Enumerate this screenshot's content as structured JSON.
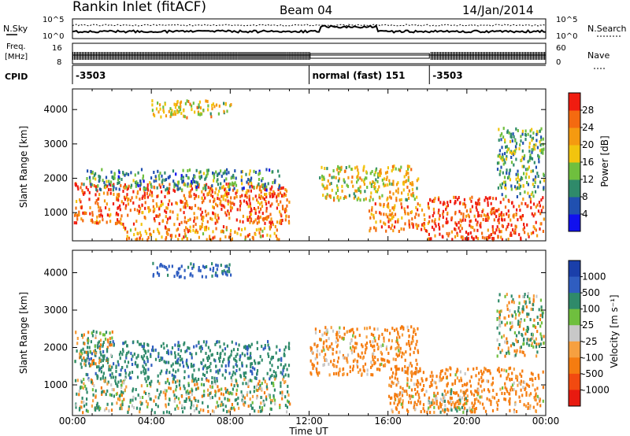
{
  "header": {
    "station": "Rankin Inlet (fitACF)",
    "beam": "Beam 04",
    "date": "14/Jan/2014"
  },
  "noise_panel": {
    "left_label": "N.Sky",
    "right_label": "N.Search",
    "left_ticks": [
      "10^5",
      "10^0"
    ],
    "right_ticks": [
      "10^5",
      "10^0"
    ]
  },
  "freq_panel": {
    "left_label_line1": "Freq.",
    "left_label_line2": "[MHz]",
    "right_label": "Nave",
    "left_ticks": [
      "16",
      "8"
    ],
    "right_ticks": [
      "60",
      "0"
    ]
  },
  "cpid_panel": {
    "label": "CPID",
    "segments": [
      {
        "text": "-3503",
        "start_hour": 0.0,
        "end_hour": 12.0
      },
      {
        "text": "normal (fast) 151",
        "start_hour": 12.0,
        "end_hour": 18.1
      },
      {
        "text": "-3503",
        "start_hour": 18.1,
        "end_hour": 24.0
      }
    ]
  },
  "x_axis": {
    "label": "Time UT",
    "ticks": [
      "00:00",
      "04:00",
      "08:00",
      "12:00",
      "16:00",
      "20:00",
      "00:00"
    ]
  },
  "power_panel": {
    "ylabel": "Slant Range [km]",
    "yticks": [
      "1000",
      "2000",
      "3000",
      "4000"
    ],
    "colorbar_label": "Power [dB]",
    "colorbar_ticks": [
      "4",
      "8",
      "12",
      "16",
      "20",
      "24",
      "28"
    ],
    "colorbar_colors": [
      "#1010ee",
      "#2050b0",
      "#2f8a6a",
      "#6fbf3e",
      "#f2c40e",
      "#f59a10",
      "#f46a10",
      "#f01c10"
    ]
  },
  "velocity_panel": {
    "ylabel": "Slant Range [km]",
    "yticks": [
      "1000",
      "2000",
      "3000",
      "4000"
    ],
    "colorbar_label": "Velocity [m s⁻¹]",
    "colorbar_ticks": [
      "1000",
      "500",
      "100",
      "25",
      "-25",
      "-100",
      "-500",
      "-1000"
    ],
    "colorbar_colors": [
      "#1a3faa",
      "#2f5dc0",
      "#2f8a6a",
      "#6fbf3e",
      "#c8c8c8",
      "#f6a040",
      "#f57c10",
      "#f24a10",
      "#e81a10"
    ]
  },
  "chart_data": {
    "type": "heatmap",
    "title": "Rankin Inlet (fitACF)",
    "xlabel": "Time UT",
    "ylabel": "Slant Range [km]",
    "x_range_hours": [
      0,
      24
    ],
    "y_range_km": [
      180,
      4600
    ],
    "power_bands": [
      {
        "start_hour": 0.0,
        "end_hour": 11.0,
        "range_low_km": 700,
        "range_high_km": 1900,
        "power_db": 26
      },
      {
        "start_hour": 0.5,
        "end_hour": 10.5,
        "range_low_km": 1700,
        "range_high_km": 2300,
        "power_db": 10
      },
      {
        "start_hour": 2.5,
        "end_hour": 10.5,
        "range_low_km": 250,
        "range_high_km": 650,
        "power_db": 22
      },
      {
        "start_hour": 12.5,
        "end_hour": 17.5,
        "range_low_km": 1400,
        "range_high_km": 2400,
        "power_db": 18
      },
      {
        "start_hour": 15.0,
        "end_hour": 18.0,
        "range_low_km": 500,
        "range_high_km": 1300,
        "power_db": 24
      },
      {
        "start_hour": 18.0,
        "end_hour": 24.0,
        "range_low_km": 250,
        "range_high_km": 1500,
        "power_db": 28
      },
      {
        "start_hour": 21.5,
        "end_hour": 24.0,
        "range_low_km": 1500,
        "range_high_km": 3500,
        "power_db": 12
      },
      {
        "start_hour": 4.0,
        "end_hour": 8.0,
        "range_low_km": 3800,
        "range_high_km": 4300,
        "power_db": 18
      }
    ],
    "velocity_bands": [
      {
        "start_hour": 0.5,
        "end_hour": 11.0,
        "range_low_km": 1200,
        "range_high_km": 2200,
        "velocity_ms": 400
      },
      {
        "start_hour": 0.0,
        "end_hour": 11.0,
        "range_low_km": 300,
        "range_high_km": 1200,
        "velocity_ms": 80
      },
      {
        "start_hour": 0.0,
        "end_hour": 2.0,
        "range_low_km": 1500,
        "range_high_km": 2500,
        "velocity_ms": 0
      },
      {
        "start_hour": 12.0,
        "end_hour": 17.5,
        "range_low_km": 1300,
        "range_high_km": 2600,
        "velocity_ms": -200
      },
      {
        "start_hour": 16.0,
        "end_hour": 24.0,
        "range_low_km": 300,
        "range_high_km": 1500,
        "velocity_ms": -200
      },
      {
        "start_hour": 18.0,
        "end_hour": 20.0,
        "range_low_km": 300,
        "range_high_km": 900,
        "velocity_ms": 0
      },
      {
        "start_hour": 4.0,
        "end_hour": 8.0,
        "range_low_km": 3900,
        "range_high_km": 4300,
        "velocity_ms": 600
      },
      {
        "start_hour": 21.5,
        "end_hour": 24.0,
        "range_low_km": 1800,
        "range_high_km": 3500,
        "velocity_ms": 50
      }
    ]
  }
}
